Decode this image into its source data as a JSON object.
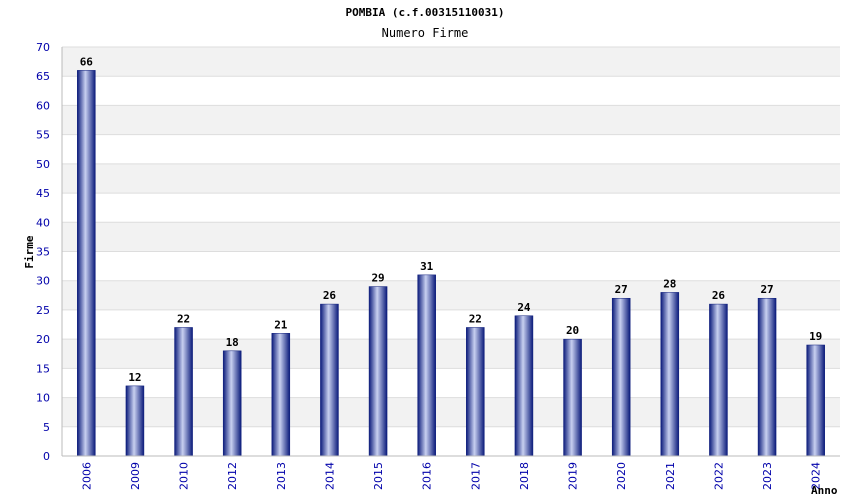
{
  "chart_data": {
    "type": "bar",
    "title": "POMBIA (c.f.00315110031)",
    "subtitle": "Numero Firme",
    "xlabel": "Anno",
    "ylabel": "Firme",
    "categories": [
      "2006",
      "2009",
      "2010",
      "2012",
      "2013",
      "2014",
      "2015",
      "2016",
      "2017",
      "2018",
      "2019",
      "2020",
      "2021",
      "2022",
      "2023",
      "2024"
    ],
    "values": [
      66,
      12,
      22,
      18,
      21,
      26,
      29,
      31,
      22,
      24,
      20,
      27,
      28,
      26,
      27,
      19
    ],
    "ylim": [
      0,
      70
    ],
    "yticks": [
      0,
      5,
      10,
      15,
      20,
      25,
      30,
      35,
      40,
      45,
      50,
      55,
      60,
      65,
      70
    ],
    "grid": true,
    "legend": "none",
    "colors": {
      "bar_dark": "#0a1a7a",
      "bar_light": "#c8d0f0",
      "band": "#f2f2f2",
      "gridline": "#dddddd",
      "tick_text": "#0000aa"
    }
  }
}
